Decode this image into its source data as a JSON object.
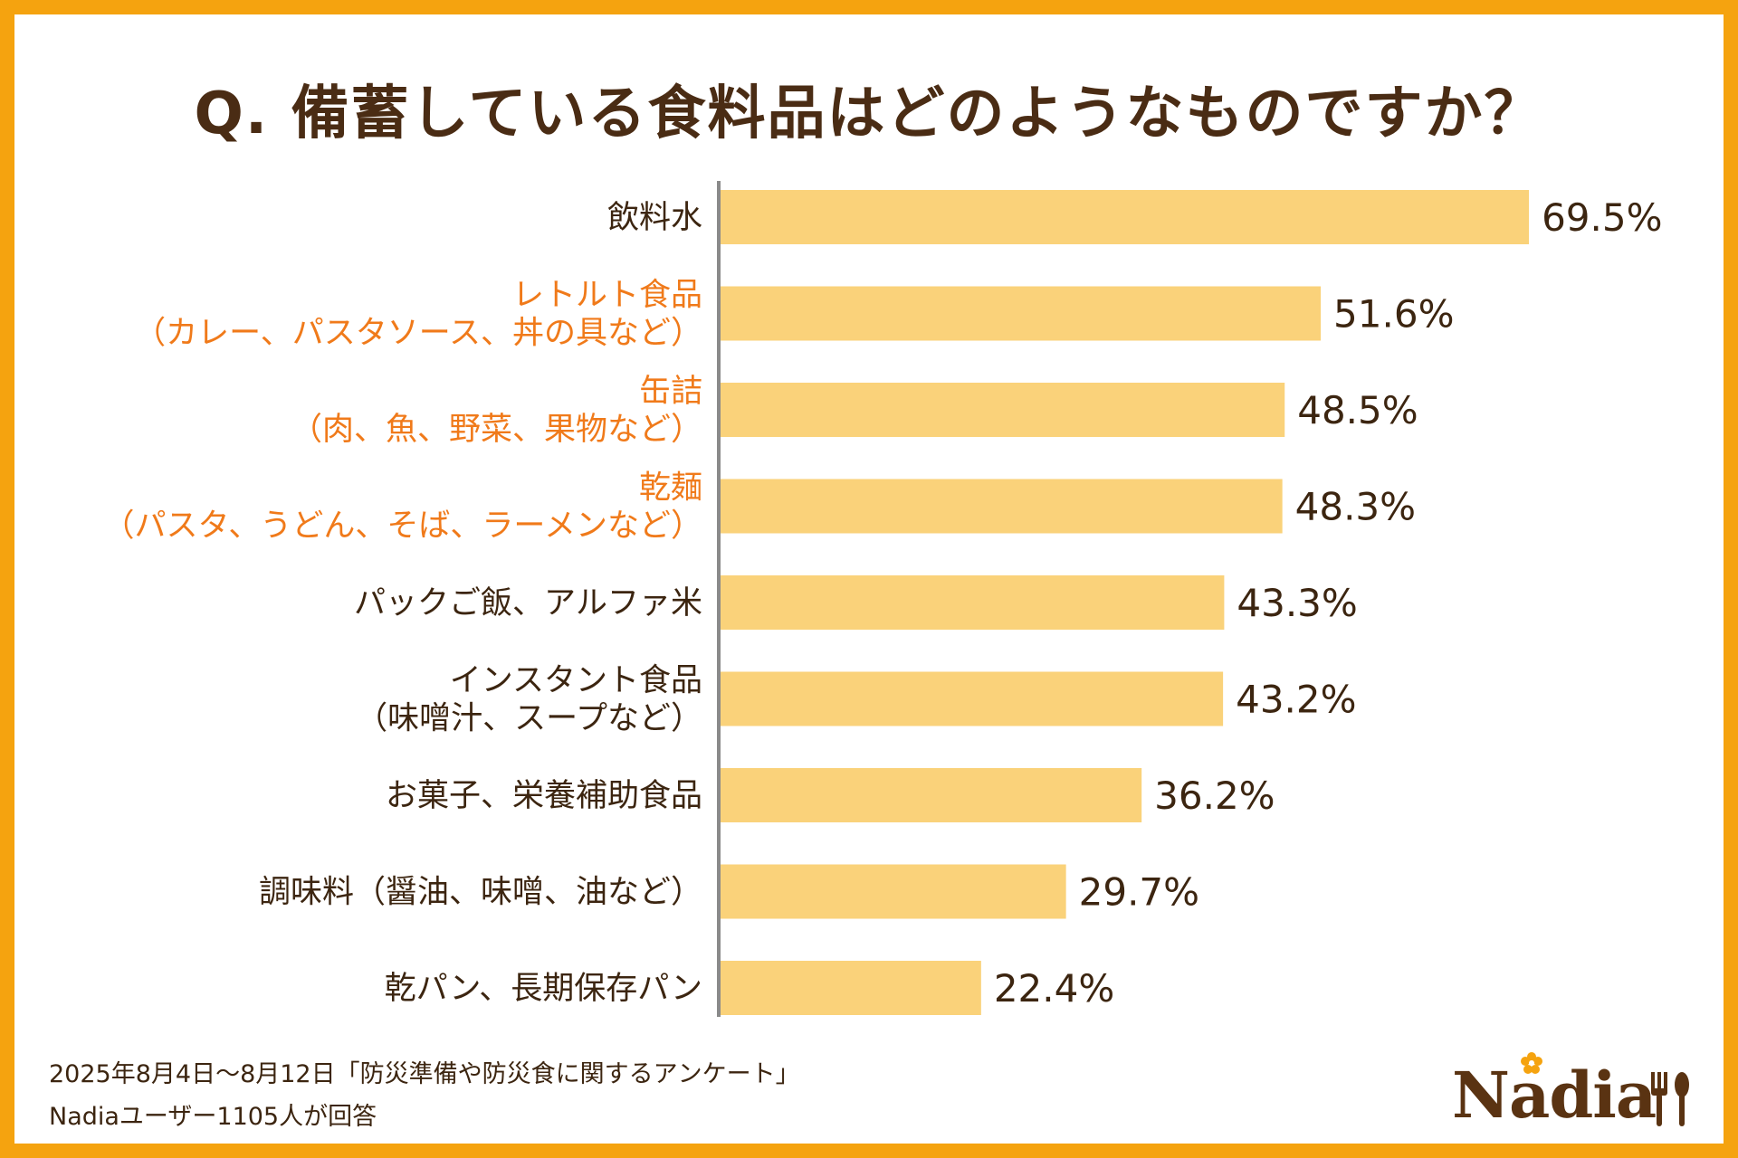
{
  "title": "Q. 備蓄している食料品はどのようなものですか？",
  "chart_data": {
    "type": "bar",
    "orientation": "horizontal",
    "categories": [
      {
        "lines": [
          "飲料水"
        ],
        "highlight": false
      },
      {
        "lines": [
          "レトルト食品",
          "（カレー、パスタソース、丼の具など）"
        ],
        "highlight": true
      },
      {
        "lines": [
          "缶詰",
          "（肉、魚、野菜、果物など）"
        ],
        "highlight": true
      },
      {
        "lines": [
          "乾麺",
          "（パスタ、うどん、そば、ラーメンなど）"
        ],
        "highlight": true
      },
      {
        "lines": [
          "パックご飯、アルファ米"
        ],
        "highlight": false
      },
      {
        "lines": [
          "インスタント食品",
          "（味噌汁、スープなど）"
        ],
        "highlight": false
      },
      {
        "lines": [
          "お菓子、栄養補助食品"
        ],
        "highlight": false
      },
      {
        "lines": [
          "調味料（醤油、味噌、油など）"
        ],
        "highlight": false
      },
      {
        "lines": [
          "乾パン、長期保存パン"
        ],
        "highlight": false
      }
    ],
    "values": [
      69.5,
      51.6,
      48.5,
      48.3,
      43.3,
      43.2,
      36.2,
      29.7,
      22.4
    ],
    "value_labels": [
      "69.5%",
      "51.6%",
      "48.5%",
      "48.3%",
      "43.3%",
      "43.2%",
      "36.2%",
      "29.7%",
      "22.4%"
    ],
    "bar_color": "#fad27a",
    "label_color": "#3c2510",
    "highlight_color": "#f07a1a",
    "axis_color": "#8a8a8a"
  },
  "footnote": {
    "line1": "2025年8月4日～8月12日「防災準備や防災食に関するアンケート」",
    "line2": "Nadiaユーザー1105人が回答"
  },
  "logo": {
    "text": "Nadia",
    "flower_color": "#f5a30f",
    "icon": "fork-spoon-icon"
  }
}
